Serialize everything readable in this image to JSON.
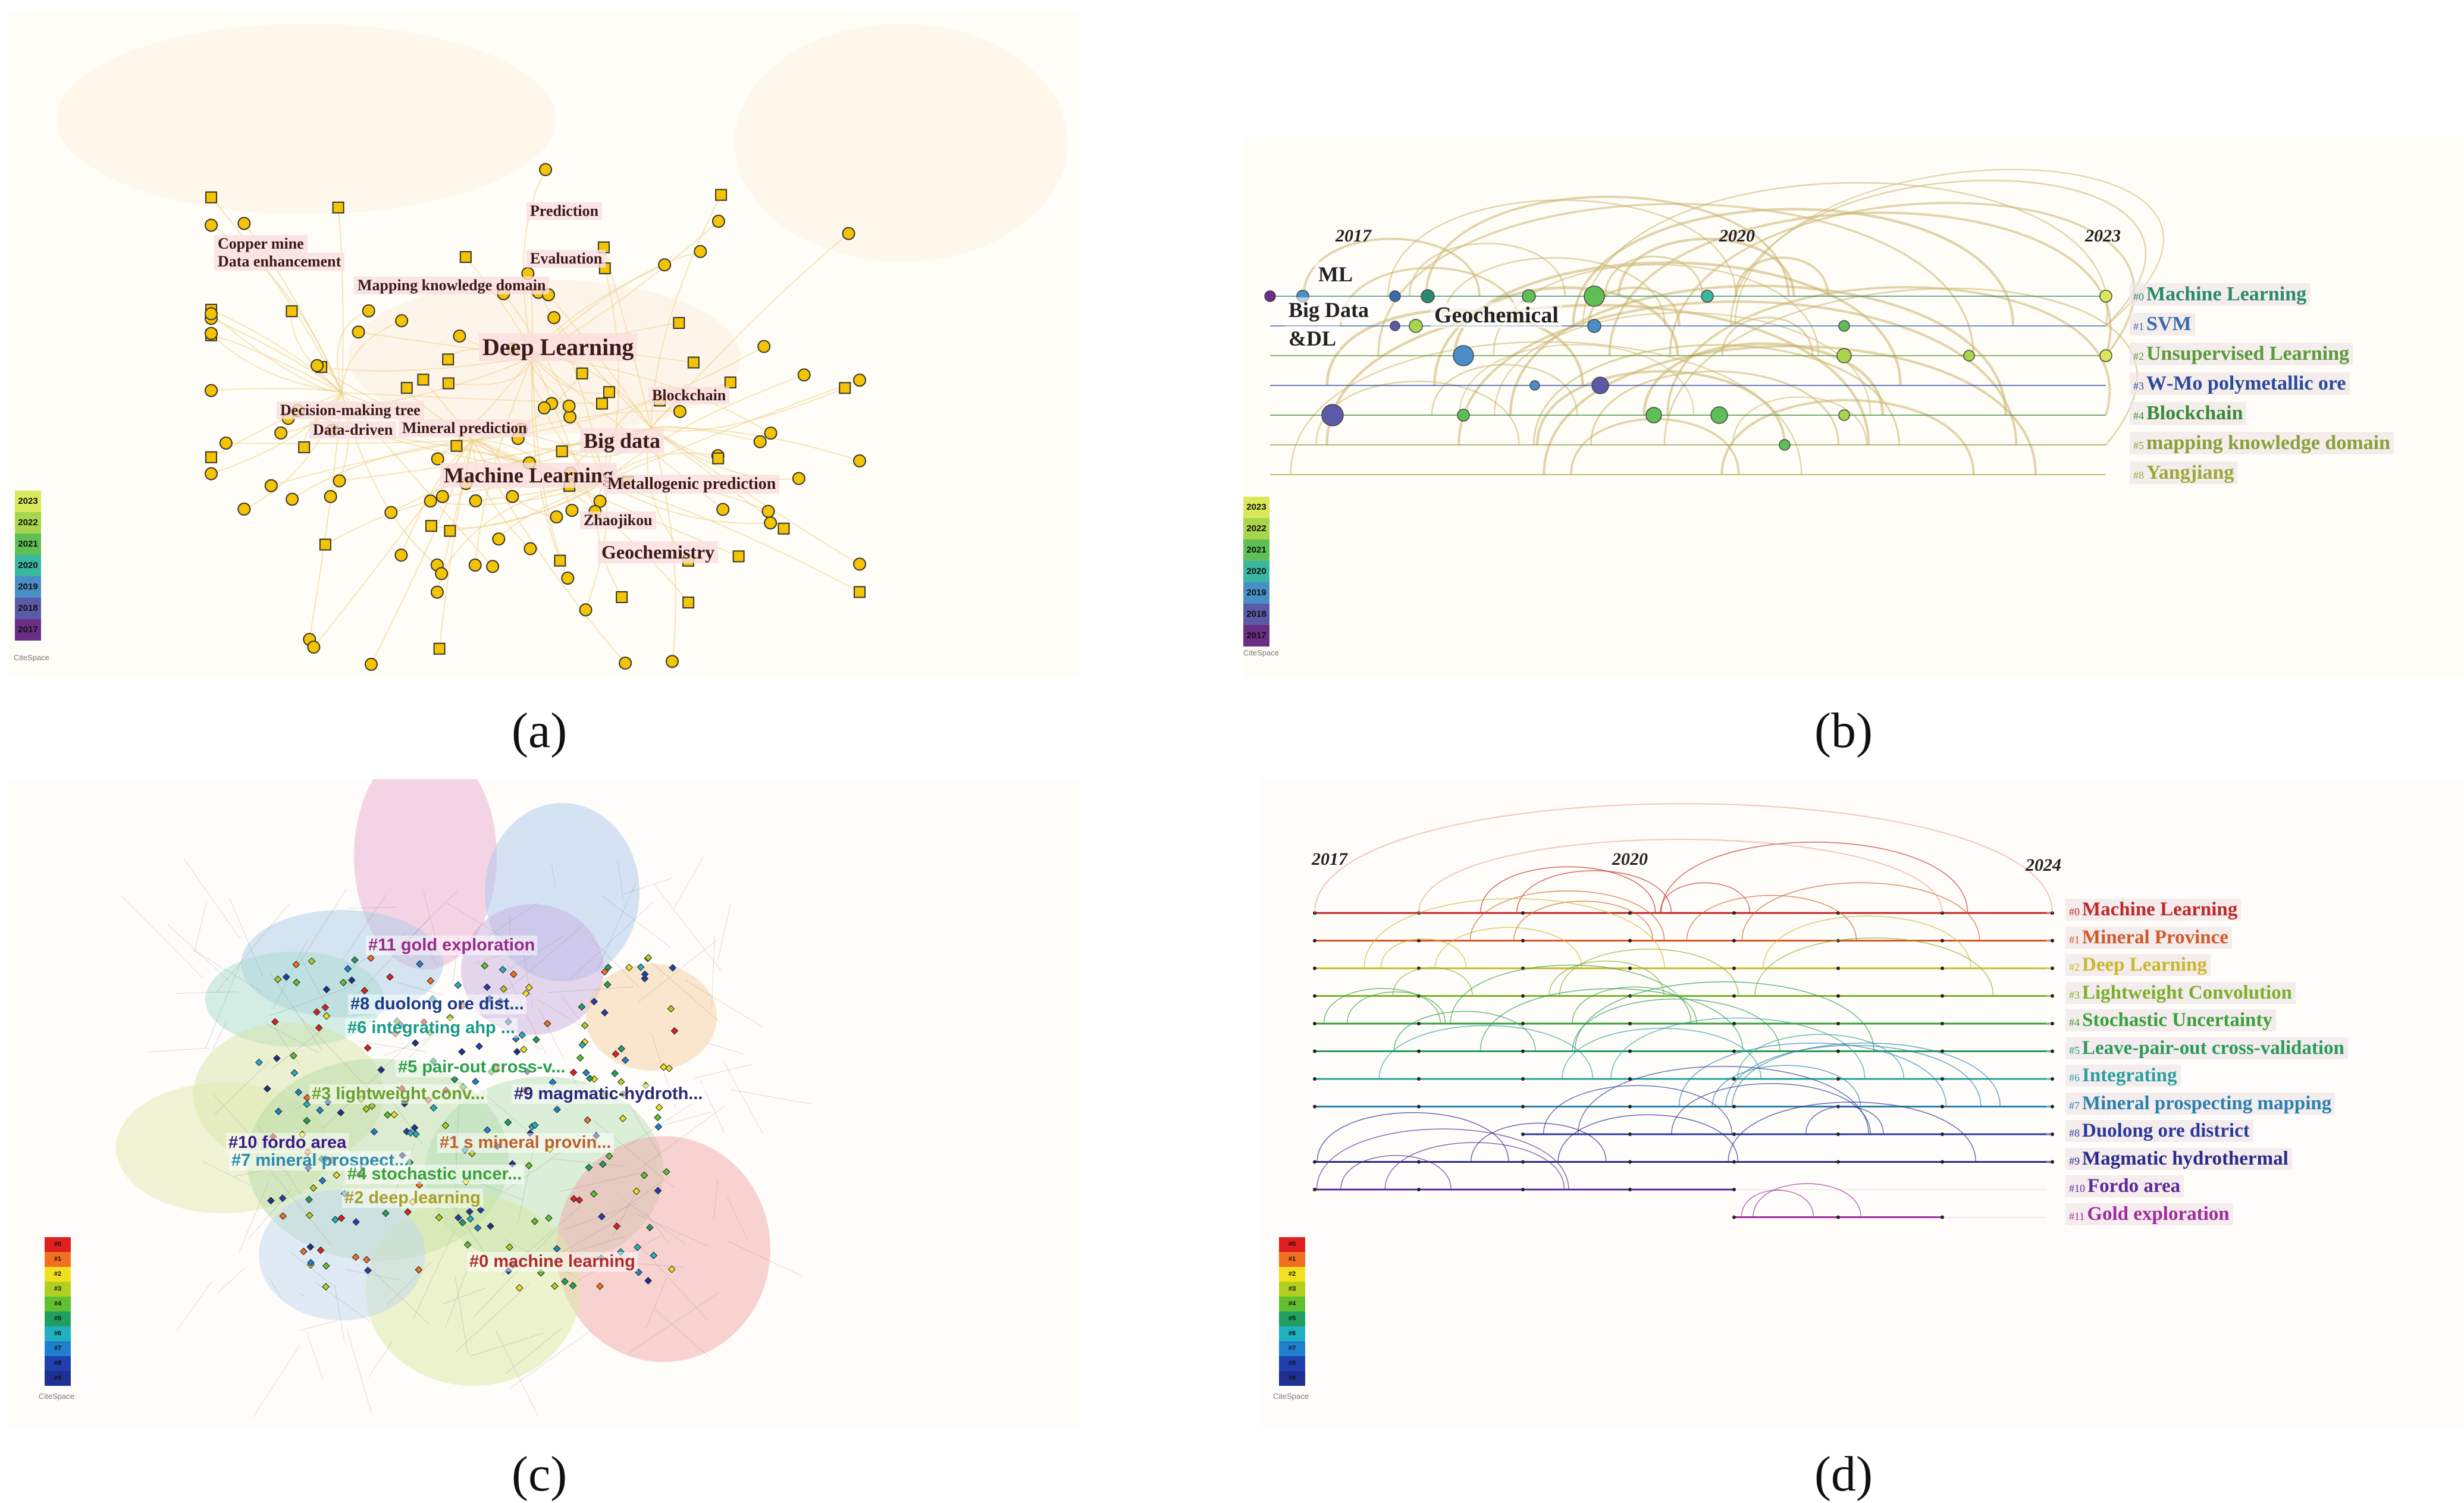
{
  "captions": {
    "a": "(a)",
    "b": "(b)",
    "c": "(c)",
    "d": "(d)"
  },
  "legend_years": [
    "2023",
    "2022",
    "2021",
    "2020",
    "2019",
    "2018",
    "2017"
  ],
  "legend_years_colors": [
    "#d8e85a",
    "#a7d54b",
    "#5fbf55",
    "#3ab7a0",
    "#4a8ec8",
    "#5a5aa8",
    "#6a2e86"
  ],
  "logo_text": "CiteSpace",
  "panel_a": {
    "keywords": [
      {
        "text": "Prediction",
        "size": 26
      },
      {
        "text": "Copper mine",
        "size": 26
      },
      {
        "text": "Data enhancement",
        "size": 26
      },
      {
        "text": "Evaluation",
        "size": 26
      },
      {
        "text": "Mapping knowledge domain",
        "size": 26
      },
      {
        "text": "Deep Learning",
        "size": 40
      },
      {
        "text": "Blockchain",
        "size": 26
      },
      {
        "text": "Decision-making tree",
        "size": 26
      },
      {
        "text": "Data-driven",
        "size": 26
      },
      {
        "text": "Mineral prediction",
        "size": 26
      },
      {
        "text": "Big data",
        "size": 36
      },
      {
        "text": "Machine Learning",
        "size": 36
      },
      {
        "text": "Metallogenic prediction",
        "size": 28
      },
      {
        "text": "Zhaojikou",
        "size": 26
      },
      {
        "text": "Geochemistry",
        "size": 32
      }
    ]
  },
  "panel_b": {
    "years": [
      "2017",
      "2020",
      "2023"
    ],
    "node_labels": [
      {
        "text": "ML",
        "size": 36
      },
      {
        "text": "Big Data",
        "size": 36
      },
      {
        "text": "&DL",
        "size": 36
      },
      {
        "text": "Geochemical",
        "size": 38
      }
    ],
    "clusters": [
      {
        "id": "#0",
        "name": "Machine  Learning",
        "color": "#2a8a6e"
      },
      {
        "id": "#1",
        "name": "SVM",
        "color": "#3a6ab0"
      },
      {
        "id": "#2",
        "name": "Unsupervised Learning",
        "color": "#5a9a3a"
      },
      {
        "id": "#3",
        "name": "W‐Mo polymetallic ore",
        "color": "#2a4a9a"
      },
      {
        "id": "#4",
        "name": "Blockchain",
        "color": "#3a8a3a"
      },
      {
        "id": "#5",
        "name": "mapping knowledge domain",
        "color": "#8aa03a"
      },
      {
        "id": "#8",
        "name": "Yangjiang",
        "color": "#9aaa3a"
      }
    ]
  },
  "panel_c": {
    "cluster_labels": [
      {
        "text": "#11 gold exploration",
        "color": "#9a2a8a"
      },
      {
        "text": "#8 duolong ore dist...",
        "color": "#1a3a8a"
      },
      {
        "text": "#6 integrating ahp ...",
        "color": "#1a9a8a"
      },
      {
        "text": "#5 pair-out cross-v...",
        "color": "#2aa04a"
      },
      {
        "text": "#3 lightweight conv...",
        "color": "#6aa02a"
      },
      {
        "text": "#9 magmatic-hydroth...",
        "color": "#2a2a7a"
      },
      {
        "text": "#10 fordo area",
        "color": "#3a1a8a"
      },
      {
        "text": "#7 mineral prospect...",
        "color": "#2a8ab0"
      },
      {
        "text": "#1 s mineral provin...",
        "color": "#c0602a"
      },
      {
        "text": "#4 stochastic uncer...",
        "color": "#3aa03a"
      },
      {
        "text": "#2 deep learning",
        "color": "#a8a02a"
      },
      {
        "text": "#0 machine learning",
        "color": "#b02a2a"
      }
    ],
    "legend": [
      "#0",
      "#1",
      "#2",
      "#3",
      "#4",
      "#5",
      "#6",
      "#7",
      "#8",
      "#9"
    ],
    "legend_colors": [
      "#e02020",
      "#f07020",
      "#f0e020",
      "#b0d020",
      "#60c030",
      "#20a060",
      "#20b0c0",
      "#2080d0",
      "#2040b0",
      "#203090"
    ]
  },
  "panel_d": {
    "years": [
      "2017",
      "2020",
      "2024"
    ],
    "clusters": [
      {
        "id": "#0",
        "name": "Machine  Learning",
        "color": "#c0282a"
      },
      {
        "id": "#1",
        "name": "Mineral  Province",
        "color": "#d05a2a"
      },
      {
        "id": "#2",
        "name": "Deep  Learning",
        "color": "#c8b82a"
      },
      {
        "id": "#3",
        "name": "Lightweight Convolution",
        "color": "#7ab02a"
      },
      {
        "id": "#4",
        "name": "Stochastic Uncertainty",
        "color": "#3aa03a"
      },
      {
        "id": "#5",
        "name": "Leave-pair-out cross-validation",
        "color": "#2a9a5a"
      },
      {
        "id": "#6",
        "name": "Integrating",
        "color": "#2aa0a0"
      },
      {
        "id": "#7",
        "name": "Mineral prospecting mapping",
        "color": "#2a80b0"
      },
      {
        "id": "#8",
        "name": "Duolong ore district",
        "color": "#2a3a9a"
      },
      {
        "id": "#9",
        "name": "Magmatic hydrothermal",
        "color": "#2a2a8a"
      },
      {
        "id": "#10",
        "name": "Fordo area",
        "color": "#5a2a9a"
      },
      {
        "id": "#11",
        "name": "Gold exploration",
        "color": "#a02aa0"
      }
    ],
    "legend": [
      "#0",
      "#1",
      "#2",
      "#3",
      "#4",
      "#5",
      "#6",
      "#7",
      "#8",
      "#9"
    ]
  }
}
